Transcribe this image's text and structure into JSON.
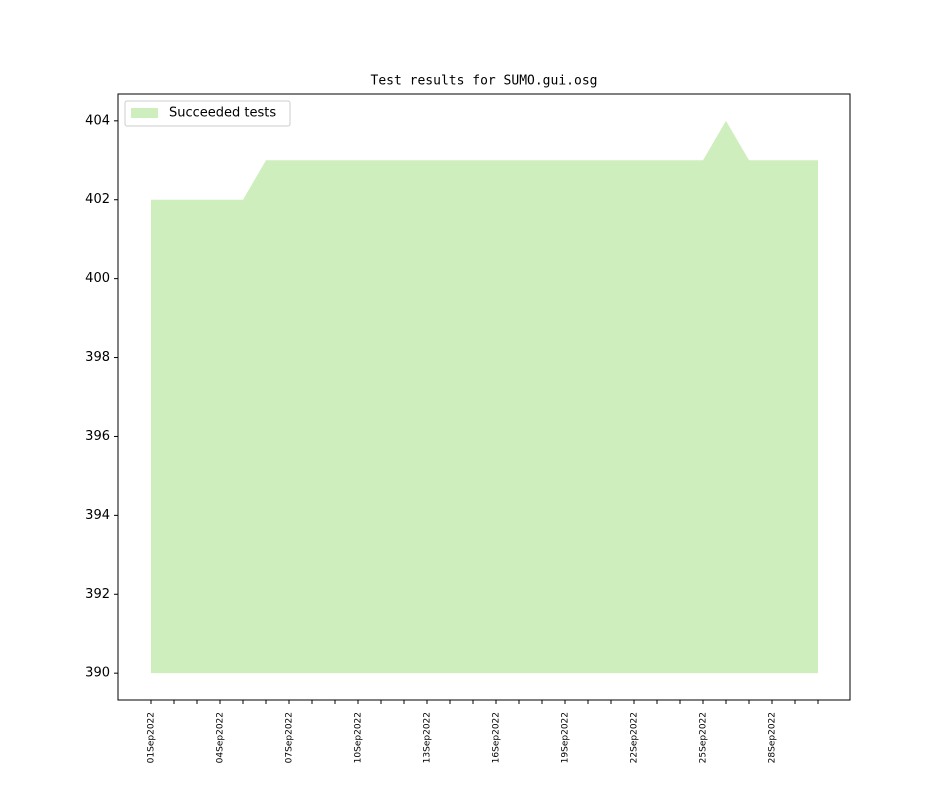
{
  "chart_data": {
    "type": "area",
    "title": "Test results for SUMO.gui.osg",
    "categories": [
      "01Sep2022",
      null,
      null,
      "04Sep2022",
      null,
      null,
      "07Sep2022",
      null,
      null,
      "10Sep2022",
      null,
      null,
      "13Sep2022",
      null,
      null,
      "16Sep2022",
      null,
      null,
      "19Sep2022",
      null,
      null,
      "22Sep2022",
      null,
      null,
      "25Sep2022",
      null,
      null,
      "28Sep2022",
      null,
      null
    ],
    "series": [
      {
        "name": "Succeeded tests",
        "color": "#cfeebe",
        "values": [
          402,
          402,
          402,
          402,
          402,
          403,
          403,
          403,
          403,
          403,
          403,
          403,
          403,
          403,
          403,
          403,
          403,
          403,
          403,
          403,
          403,
          403,
          403,
          403,
          403,
          404,
          403,
          403,
          403,
          403
        ]
      }
    ],
    "baseline": 390,
    "ylim": [
      389.32,
      404.68
    ],
    "yticks": [
      390,
      392,
      394,
      396,
      398,
      400,
      402,
      404
    ],
    "legend": "upper left",
    "grid": false
  }
}
